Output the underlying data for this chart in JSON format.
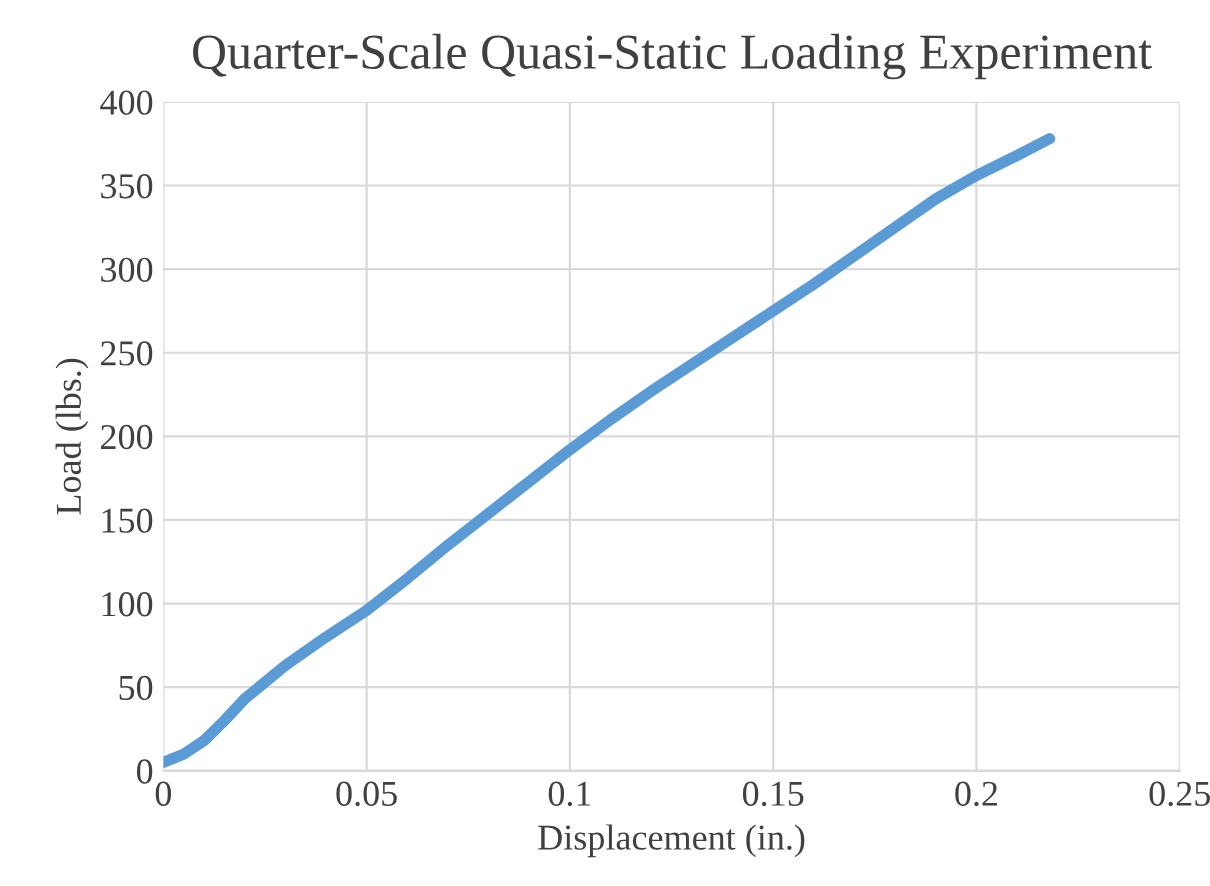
{
  "chart_data": {
    "type": "line",
    "title": "Quarter-Scale Quasi-Static Loading Experiment",
    "xlabel": "Displacement (in.)",
    "ylabel": "Load (lbs.)",
    "x": [
      0,
      0.005,
      0.01,
      0.015,
      0.02,
      0.03,
      0.04,
      0.05,
      0.06,
      0.07,
      0.08,
      0.09,
      0.1,
      0.11,
      0.12,
      0.13,
      0.14,
      0.15,
      0.16,
      0.17,
      0.18,
      0.19,
      0.2,
      0.21,
      0.218
    ],
    "series": [
      {
        "color": "#5b9bd5",
        "values": [
          5,
          10,
          18,
          30,
          43,
          63,
          80,
          96,
          115,
          135,
          154,
          173,
          192,
          210,
          227,
          243,
          259,
          275,
          291,
          308,
          325,
          342,
          356,
          368,
          378
        ]
      }
    ],
    "xlim": [
      0,
      0.25
    ],
    "ylim": [
      0,
      400
    ],
    "xticks": [
      0,
      0.05,
      0.1,
      0.15,
      0.2,
      0.25
    ],
    "yticks": [
      0,
      50,
      100,
      150,
      200,
      250,
      300,
      350,
      400
    ],
    "grid": true,
    "marker": "none",
    "line_style": "solid"
  }
}
